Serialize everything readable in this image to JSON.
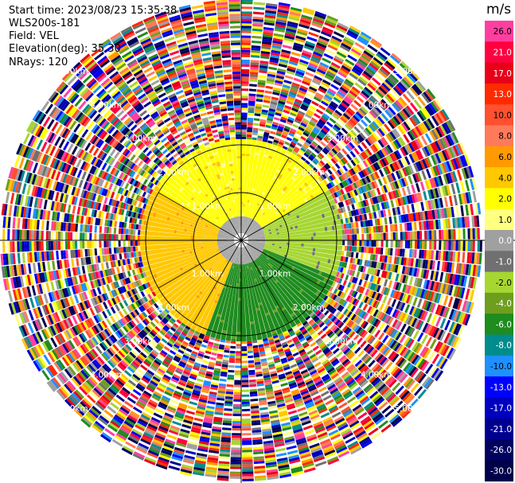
{
  "header": {
    "start_time": "Start time: 2023/08/23 15:35:38",
    "instrument": "WLS200s-181",
    "field": "Field: VEL",
    "elevation": "Elevation(deg): 35.30",
    "nrays": "NRays: 120"
  },
  "chart_data": {
    "type": "heatmap",
    "projection": "polar PPI",
    "field": "VEL",
    "nrays": 120,
    "rings_km": [
      1.0,
      2.0,
      3.0,
      4.0,
      5.0
    ],
    "ring_labels": [
      "1.00km",
      "2.00km",
      "3.00km",
      "4.00km",
      "5.00km"
    ],
    "colorbar": {
      "unit": "m/s",
      "ticks": [
        "26.0",
        "21.0",
        "17.0",
        "13.0",
        "10.0",
        "8.0",
        "6.0",
        "4.0",
        "2.0",
        "1.0",
        "0.0",
        "-1.0",
        "-2.0",
        "-4.0",
        "-6.0",
        "-8.0",
        "-10.0",
        "-13.0",
        "-17.0",
        "-21.0",
        "-26.0",
        "-30.0"
      ],
      "colors": [
        "#ff3fa0",
        "#ff0040",
        "#e8001a",
        "#ff2a00",
        "#ff5030",
        "#ff7a5a",
        "#ff9a00",
        "#ffc800",
        "#ffff00",
        "#ffff80",
        "#a0a0a0",
        "#707070",
        "#a6d632",
        "#6e9e1e",
        "#1e8c1e",
        "#008c8c",
        "#1e90ff",
        "#0000ff",
        "#0000c0",
        "#000090",
        "#000060",
        "#00004a"
      ]
    },
    "near_field_pattern": {
      "description": "positive velocities (yellow/orange) to the north-west, near-zero gray band, negative (green) to the south-east",
      "sectors": [
        {
          "azimuth_range_deg": [
            300,
            60
          ],
          "value_ms": 2.0
        },
        {
          "azimuth_range_deg": [
            200,
            300
          ],
          "value_ms": 4.0
        },
        {
          "azimuth_range_deg": [
            60,
            110
          ],
          "value_ms": -2.0
        },
        {
          "azimuth_range_deg": [
            110,
            200
          ],
          "value_ms": -6.0
        }
      ],
      "max_range_km": 2.1
    },
    "far_field": "noise beyond ~2.1 km"
  }
}
